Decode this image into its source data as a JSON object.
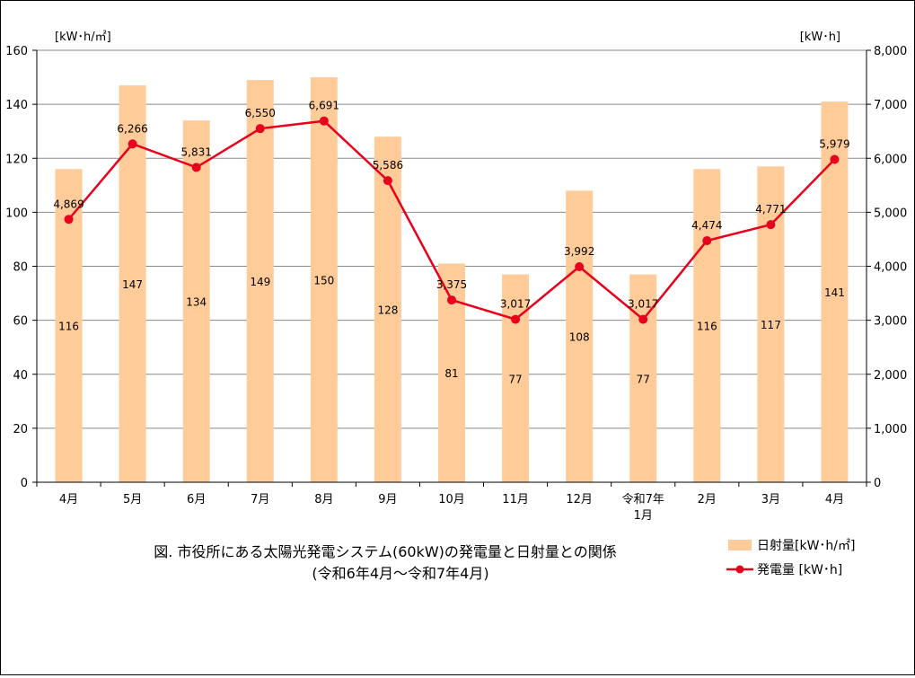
{
  "chart_data": {
    "type": "bar",
    "title": "図. 市役所にある太陽光発電システム(60kW)の発電量と日射量との関係",
    "subtitle": "(令和6年4月～令和7年4月)",
    "categories": [
      [
        "4月"
      ],
      [
        "5月"
      ],
      [
        "6月"
      ],
      [
        "7月"
      ],
      [
        "8月"
      ],
      [
        "9月"
      ],
      [
        "10月"
      ],
      [
        "11月"
      ],
      [
        "12月"
      ],
      [
        "令和7年",
        "1月"
      ],
      [
        "2月"
      ],
      [
        "3月"
      ],
      [
        "4月"
      ]
    ],
    "series": [
      {
        "name": "日射量[kW･h/㎡]",
        "type": "bar",
        "axis": "left",
        "color": "#FFCC99",
        "values": [
          116,
          147,
          134,
          149,
          150,
          128,
          81,
          77,
          108,
          77,
          116,
          117,
          141
        ],
        "labels": [
          "116",
          "147",
          "134",
          "149",
          "150",
          "128",
          "81",
          "77",
          "108",
          "77",
          "116",
          "117",
          "141"
        ]
      },
      {
        "name": "発電量 [kW･h]",
        "type": "line",
        "axis": "right",
        "color": "#E8001C",
        "values": [
          4869,
          6266,
          5831,
          6550,
          6691,
          5586,
          3375,
          3017,
          3992,
          3017,
          4474,
          4771,
          5979
        ],
        "labels": [
          "4,869",
          "6,266",
          "5,831",
          "6,550",
          "6,691",
          "5,586",
          "3,375",
          "3,017",
          "3,992",
          "3,017",
          "4,474",
          "4,771",
          "5,979"
        ]
      }
    ],
    "y_left": {
      "label": "[kW･h/㎡]",
      "range": [
        0,
        160
      ],
      "ticks": [
        "0",
        "20",
        "40",
        "60",
        "80",
        "100",
        "120",
        "140",
        "160"
      ]
    },
    "y_right": {
      "label": "[kW･h]",
      "range": [
        0,
        8000
      ],
      "ticks": [
        "0",
        "1,000",
        "2,000",
        "3,000",
        "4,000",
        "5,000",
        "6,000",
        "7,000",
        "8,000"
      ]
    },
    "grid": true,
    "legend_position": "bottom-right"
  }
}
